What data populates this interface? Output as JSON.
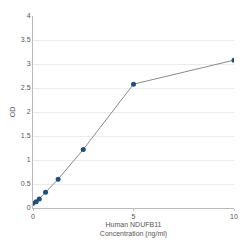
{
  "chart_data": {
    "type": "line",
    "x_label": "Human NDUFB11\nConcentration (ng/ml)",
    "y_label": "OD",
    "x": [
      0,
      0.156,
      0.3125,
      0.625,
      1.25,
      2.5,
      5,
      10
    ],
    "values": [
      0.1,
      0.13,
      0.19,
      0.33,
      0.6,
      1.22,
      2.58,
      3.08
    ],
    "color": "#1f4e79",
    "marker": "circle",
    "xlim": [
      0,
      10
    ],
    "xticks": [
      0,
      5,
      10
    ],
    "ylim": [
      0,
      4
    ],
    "yticks": [
      0,
      0.5,
      1,
      1.5,
      2,
      2.5,
      3,
      3.5,
      4
    ],
    "grid": true
  }
}
